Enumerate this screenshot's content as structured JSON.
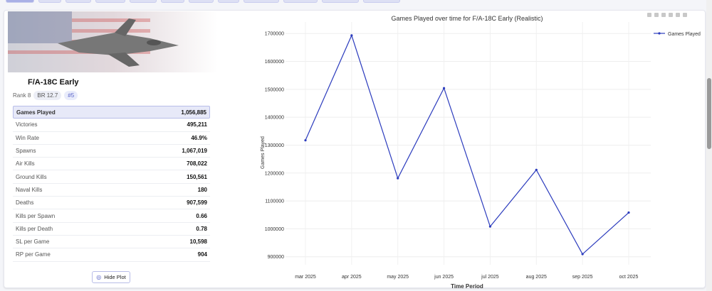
{
  "vehicle": {
    "name": "F/A-18C Early",
    "rank": "Rank 8",
    "br": "BR 12.7",
    "position": "#5"
  },
  "stats": [
    {
      "label": "Games Played",
      "value": "1,056,885",
      "highlight": true
    },
    {
      "label": "Victories",
      "value": "495,211"
    },
    {
      "label": "Win Rate",
      "value": "46.9%"
    },
    {
      "label": "Spawns",
      "value": "1,067,019"
    },
    {
      "label": "Air Kills",
      "value": "708,022"
    },
    {
      "label": "Ground Kills",
      "value": "150,561"
    },
    {
      "label": "Naval Kills",
      "value": "180"
    },
    {
      "label": "Deaths",
      "value": "907,599"
    },
    {
      "label": "Kills per Spawn",
      "value": "0.66"
    },
    {
      "label": "Kills per Death",
      "value": "0.78"
    },
    {
      "label": "SL per Game",
      "value": "10,598"
    },
    {
      "label": "RP per Game",
      "value": "904"
    }
  ],
  "hide_plot_label": "Hide Plot",
  "chart_data": {
    "type": "line",
    "title": "Games Played over time for F/A-18C Early (Realistic)",
    "xlabel": "Time Period",
    "ylabel": "Games Played",
    "categories": [
      "mar 2025",
      "apr 2025",
      "may 2025",
      "jun 2025",
      "jul 2025",
      "aug 2025",
      "sep 2025",
      "oct 2025"
    ],
    "series": [
      {
        "name": "Games Played",
        "color": "#2b3bbd",
        "values": [
          1316000,
          1692000,
          1180000,
          1503000,
          1007000,
          1210000,
          908000,
          1056885
        ]
      }
    ],
    "yticks": [
      900000,
      1000000,
      1100000,
      1200000,
      1300000,
      1400000,
      1500000,
      1600000,
      1700000
    ],
    "ylim": [
      870000,
      1740000
    ],
    "grid": true,
    "legend": "top-right"
  }
}
